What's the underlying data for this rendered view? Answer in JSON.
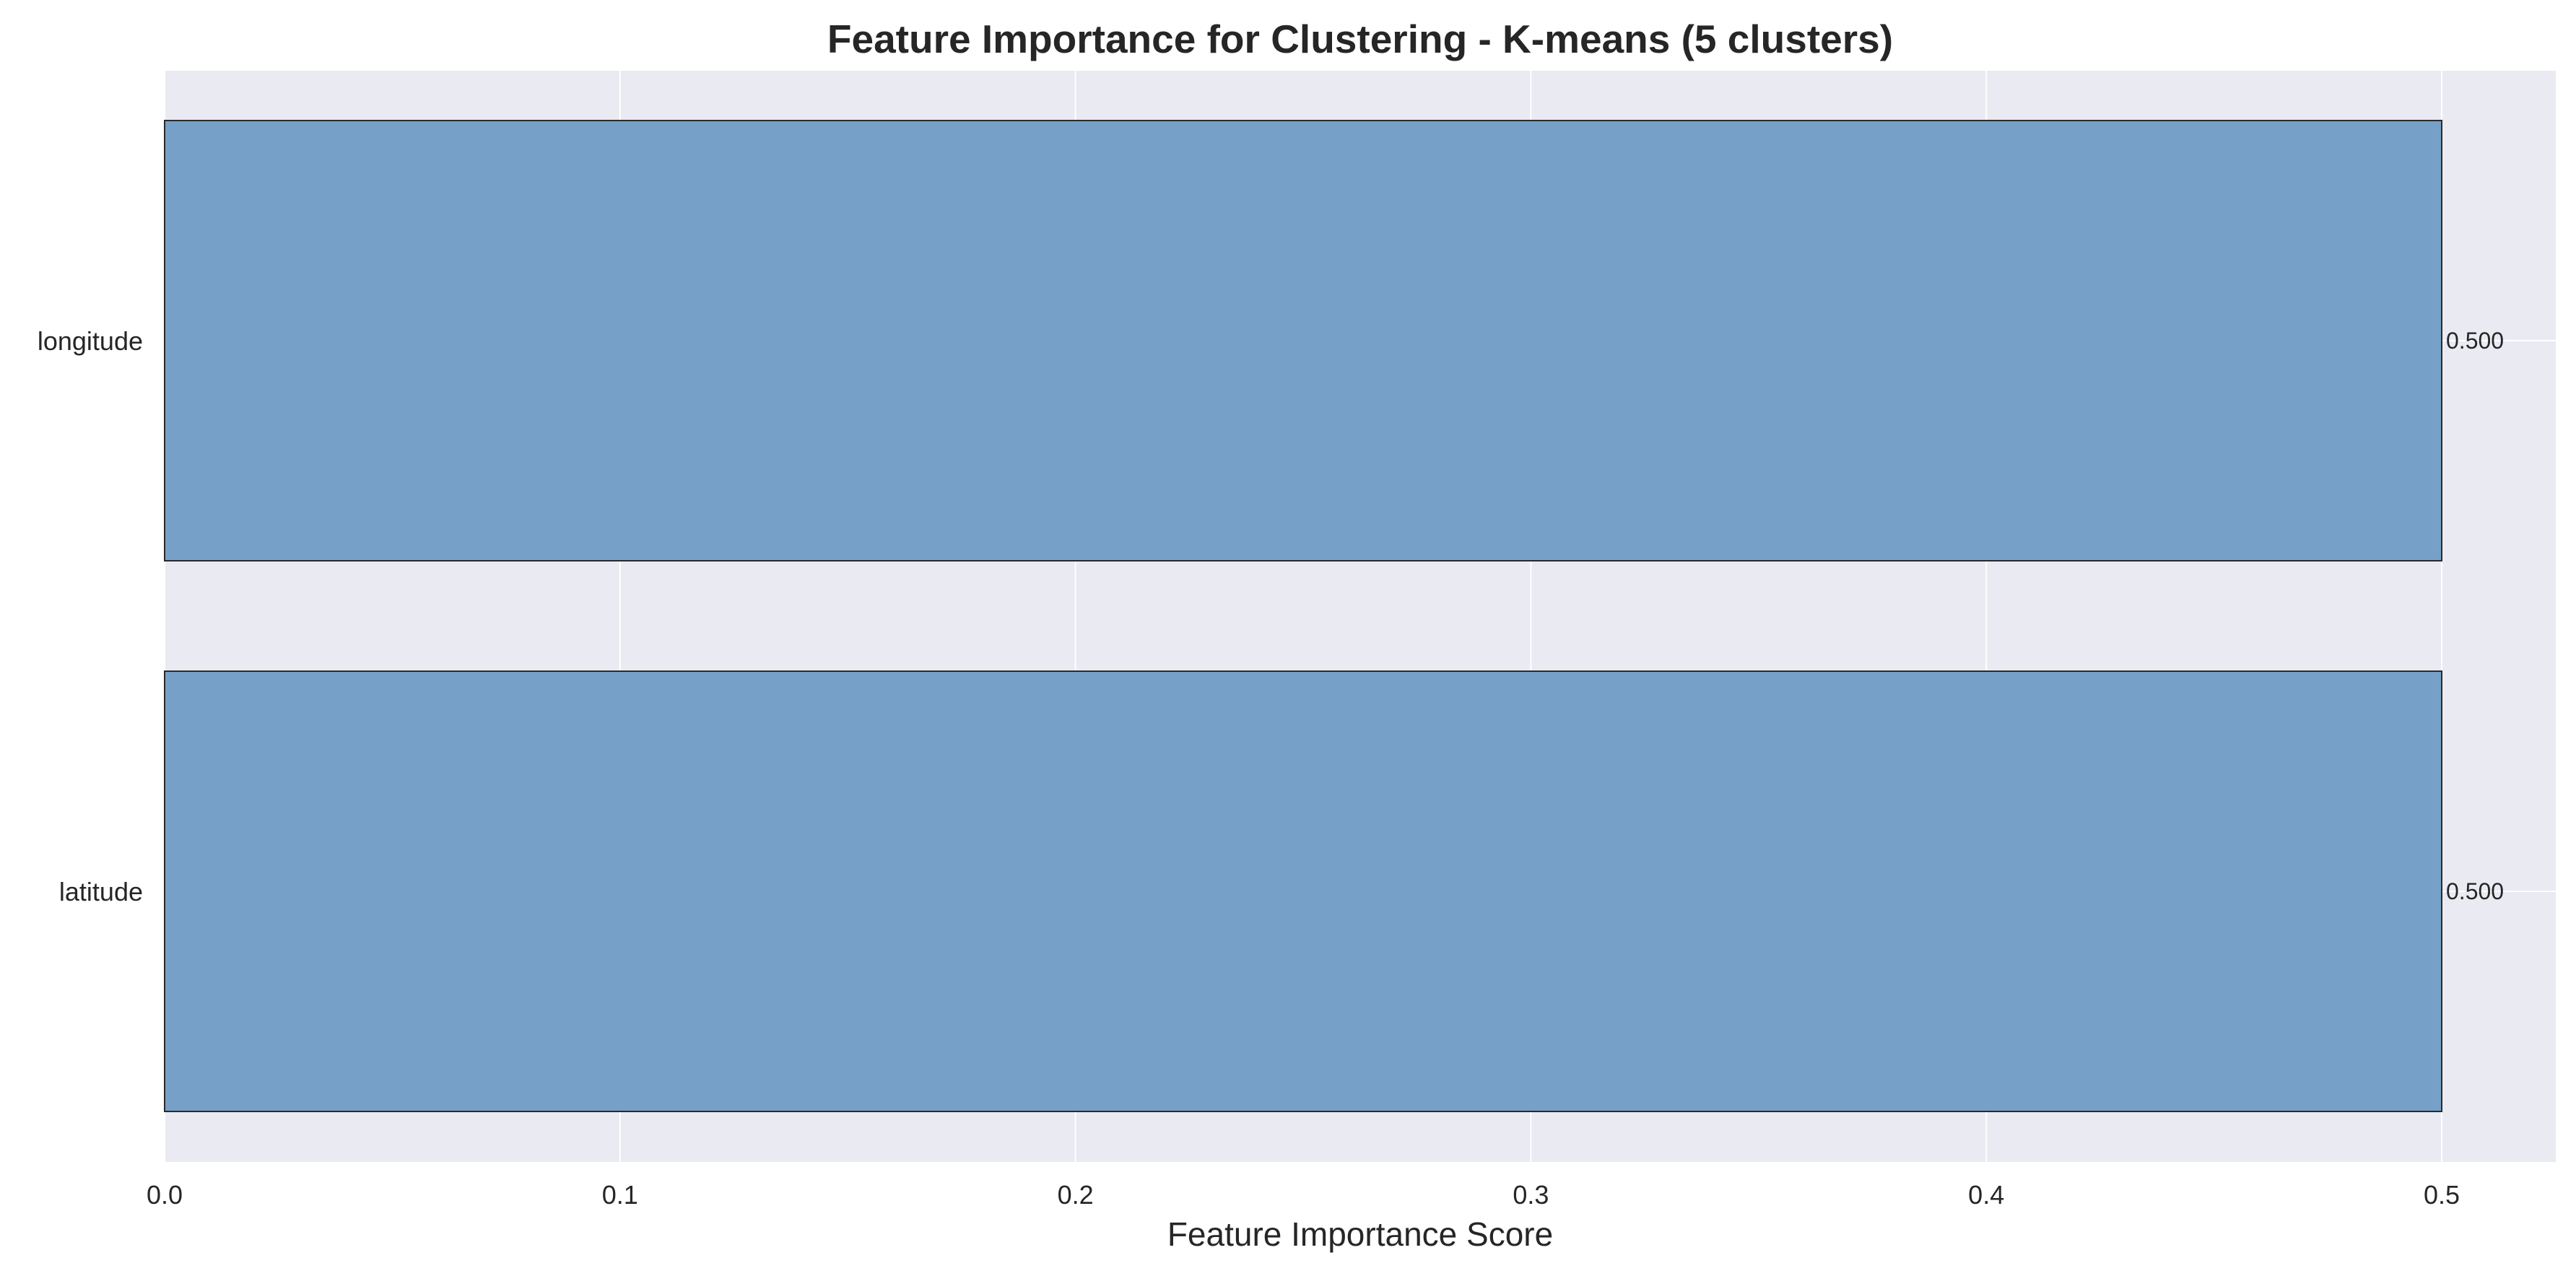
{
  "chart_data": {
    "type": "bar",
    "orientation": "horizontal",
    "title": "Feature Importance for Clustering - K-means (5 clusters)",
    "xlabel": "Feature Importance Score",
    "ylabel": "",
    "categories": [
      "latitude",
      "longitude"
    ],
    "values": [
      0.5,
      0.5
    ],
    "value_labels": [
      "0.500",
      "0.500"
    ],
    "xlim": [
      0,
      0.5
    ],
    "xticks": [
      "0.0",
      "0.1",
      "0.2",
      "0.3",
      "0.4",
      "0.5"
    ],
    "grid": true,
    "legend": "none",
    "colors": {
      "bar": "#76a0c7",
      "bar_edge": "#2a2a2a",
      "plot_background": "#eaeaf2",
      "grid": "#ffffff",
      "text": "#262626"
    }
  }
}
